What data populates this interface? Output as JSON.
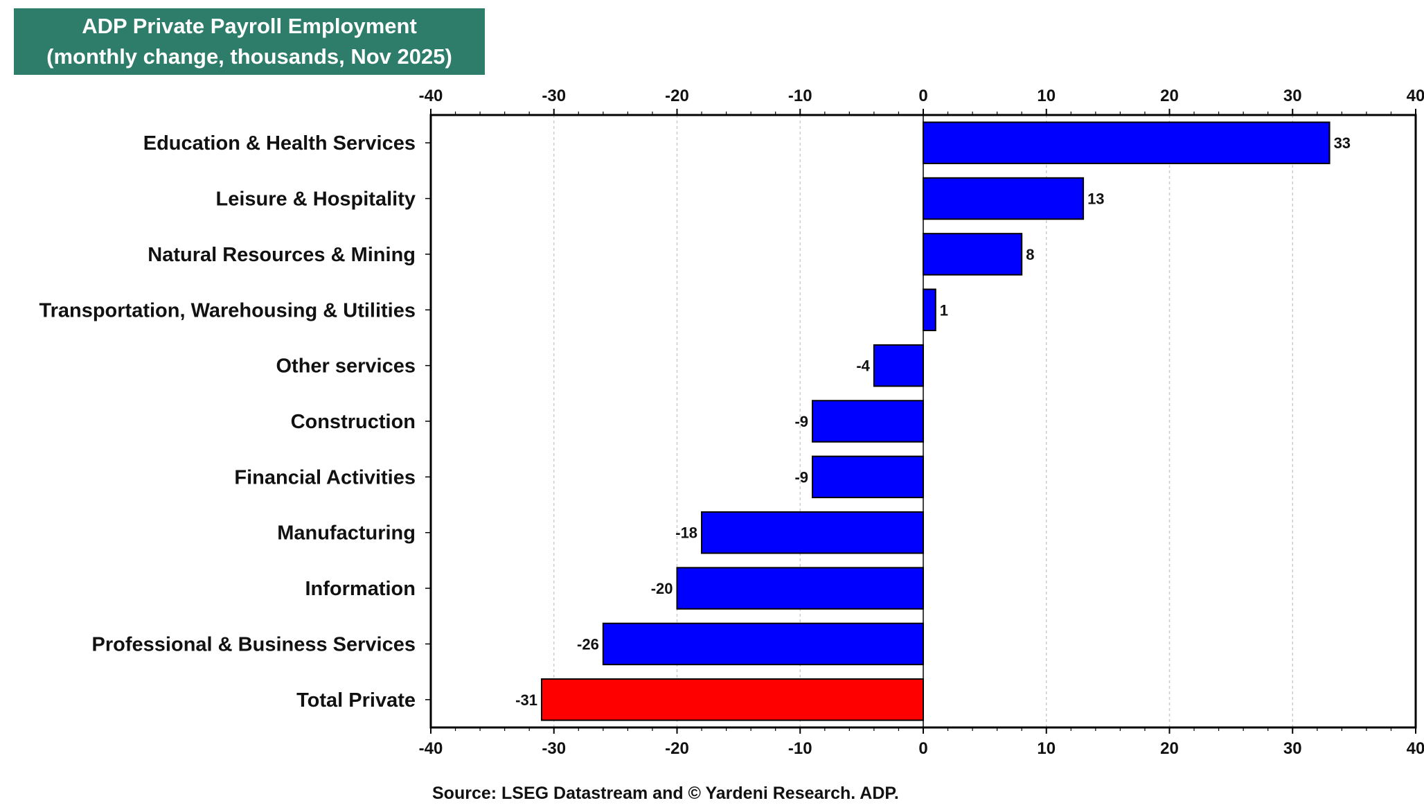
{
  "title": {
    "line1": "ADP Private Payroll Employment",
    "line2": "(monthly change, thousands, Nov 2025)"
  },
  "source": "Source: LSEG Datastream and © Yardeni Research. ADP.",
  "colors": {
    "positive": "#0000ff",
    "negative": "#0000ff",
    "total": "#ff0000",
    "title_bg": "#2e7d6b"
  },
  "chart_data": {
    "type": "bar",
    "orientation": "horizontal",
    "title": "ADP Private Payroll Employment (monthly change, thousands, Nov 2025)",
    "categories": [
      "Education & Health Services",
      "Leisure & Hospitality",
      "Natural Resources & Mining",
      "Transportation, Warehousing & Utilities",
      "Other services",
      "Construction",
      "Financial Activities",
      "Manufacturing",
      "Information",
      "Professional & Business Services",
      "Total Private"
    ],
    "values": [
      33,
      13,
      8,
      1,
      -4,
      -9,
      -9,
      -18,
      -20,
      -26,
      -31
    ],
    "highlight": "Total Private",
    "xlim": [
      -40,
      40
    ],
    "xticks": [
      -40,
      -30,
      -20,
      -10,
      0,
      10,
      20,
      30,
      40
    ],
    "grid": true,
    "xlabel": "",
    "ylabel": ""
  }
}
